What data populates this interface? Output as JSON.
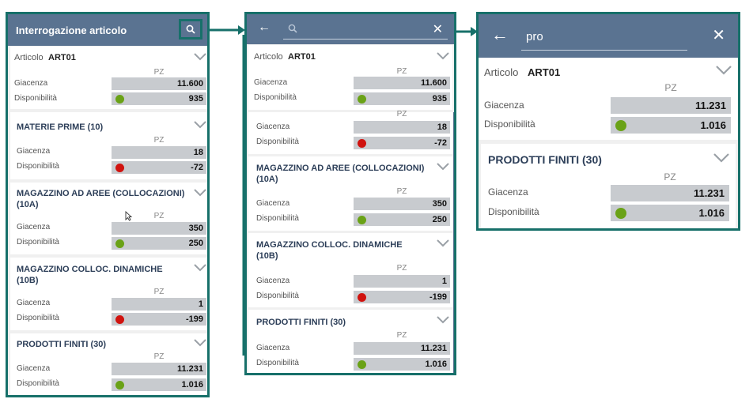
{
  "common": {
    "giacenza_label": "Giacenza",
    "disponibilita_label": "Disponibilità",
    "unit": "PZ"
  },
  "screen1": {
    "title": "Interrogazione articolo",
    "articolo_label": "Articolo",
    "articolo_code": "ART01",
    "total": {
      "giacenza": "11.600",
      "disponibilita": "935",
      "status": "green"
    },
    "groups": [
      {
        "title": "MATERIE PRIME (10)",
        "giacenza": "18",
        "disponibilita": "-72",
        "status": "red"
      },
      {
        "title": "MAGAZZINO AD AREE (COLLOCAZIONI) (10A)",
        "giacenza": "350",
        "disponibilita": "250",
        "status": "green"
      },
      {
        "title": "MAGAZZINO COLLOC. DINAMICHE (10B)",
        "giacenza": "1",
        "disponibilita": "-199",
        "status": "red"
      },
      {
        "title": "PRODOTTI FINITI (30)",
        "giacenza": "11.231",
        "disponibilita": "1.016",
        "status": "green"
      }
    ]
  },
  "screen2": {
    "search_value": "",
    "articolo_label": "Articolo",
    "articolo_code": "ART01",
    "total": {
      "giacenza": "11.600",
      "disponibilita": "935",
      "status": "green"
    },
    "partial": {
      "giacenza": "18",
      "disponibilita": "-72",
      "status": "red"
    },
    "groups": [
      {
        "title": "MAGAZZINO AD AREE (COLLOCAZIONI) (10A)",
        "giacenza": "350",
        "disponibilita": "250",
        "status": "green"
      },
      {
        "title": "MAGAZZINO COLLOC. DINAMICHE (10B)",
        "giacenza": "1",
        "disponibilita": "-199",
        "status": "red"
      },
      {
        "title": "PRODOTTI FINITI (30)",
        "giacenza": "11.231",
        "disponibilita": "1.016",
        "status": "green"
      }
    ]
  },
  "screen3": {
    "search_value": "pro",
    "articolo_label": "Articolo",
    "articolo_code": "ART01",
    "total": {
      "giacenza": "11.231",
      "disponibilita": "1.016",
      "status": "green"
    },
    "groups": [
      {
        "title": "PRODOTTI FINITI (30)",
        "giacenza": "11.231",
        "disponibilita": "1.016",
        "status": "green"
      }
    ]
  },
  "colors": {
    "header": "#5a7391",
    "frame": "#17706a",
    "ok": "#6aa217",
    "ko": "#d0130f"
  },
  "icons": [
    "search-icon",
    "back-arrow-icon",
    "close-icon",
    "chevron-down-icon",
    "status-dot-icon",
    "mouse-cursor-icon"
  ]
}
